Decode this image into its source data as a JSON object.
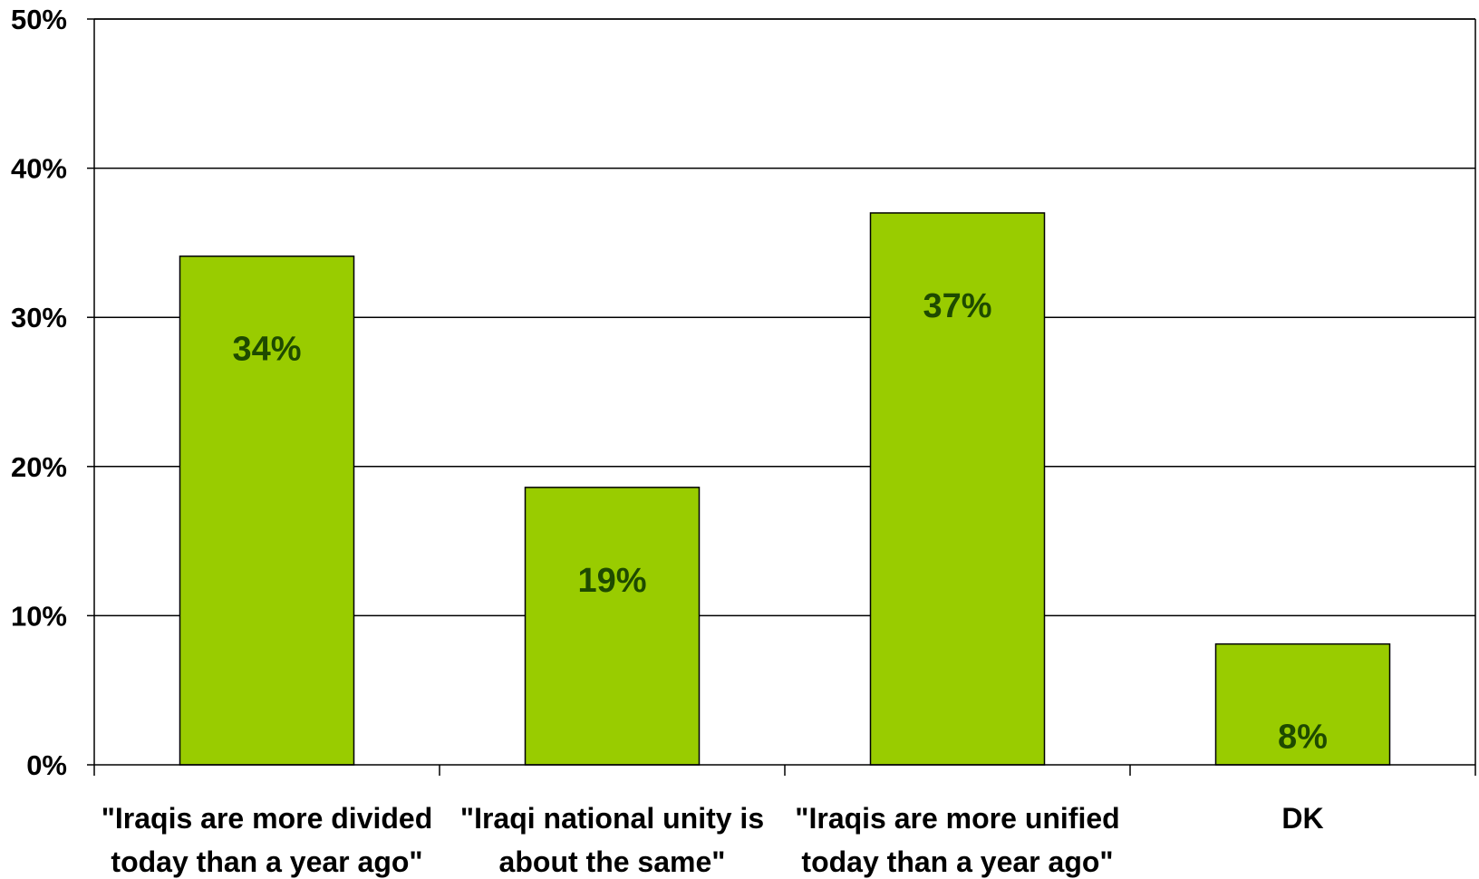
{
  "chart_data": {
    "type": "bar",
    "categories": [
      [
        "\"Iraqis are more divided",
        "today than a year ago\""
      ],
      [
        "\"Iraqi national unity is",
        "about the same\""
      ],
      [
        "\"Iraqis are more unified",
        "today than a year ago\""
      ],
      [
        "DK"
      ]
    ],
    "values": [
      34,
      19,
      37,
      8
    ],
    "value_labels": [
      "34%",
      "19%",
      "37%",
      "8%"
    ],
    "exact_values": [
      34.1,
      18.6,
      37.0,
      8.1
    ],
    "ylim": [
      0,
      50
    ],
    "yticks": [
      0,
      10,
      20,
      30,
      40,
      50
    ],
    "ytick_labels": [
      "0%",
      "10%",
      "20%",
      "30%",
      "40%",
      "50%"
    ],
    "grid": true,
    "legend": "none",
    "colors": {
      "bar_fill": "#99CC00",
      "bar_stroke": "#000000",
      "value_label": "#1E4A00",
      "gridline": "#000000"
    }
  }
}
